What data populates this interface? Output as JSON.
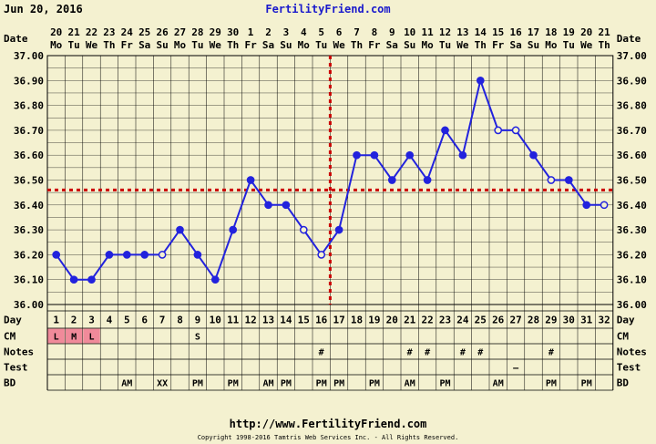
{
  "header": {
    "date": "Jun 20, 2016",
    "site": "FertilityFriend.com"
  },
  "footer": {
    "url": "http://www.FertilityFriend.com",
    "copyright": "Copyright 1998-2016 Tamtris Web Services Inc. - All Rights Reserved."
  },
  "chart_data": {
    "type": "line",
    "row_labels": {
      "date": "Date",
      "day": "Day",
      "cm": "CM",
      "notes": "Notes",
      "test": "Test",
      "bd": "BD"
    },
    "dates": [
      "20",
      "21",
      "22",
      "23",
      "24",
      "25",
      "26",
      "27",
      "28",
      "29",
      "30",
      "1",
      "2",
      "3",
      "4",
      "5",
      "6",
      "7",
      "8",
      "9",
      "10",
      "11",
      "12",
      "13",
      "14",
      "15",
      "16",
      "17",
      "18",
      "19",
      "20",
      "21"
    ],
    "weekdays": [
      "Mo",
      "Tu",
      "We",
      "Th",
      "Fr",
      "Sa",
      "Su",
      "Mo",
      "Tu",
      "We",
      "Th",
      "Fr",
      "Sa",
      "Su",
      "Mo",
      "Tu",
      "We",
      "Th",
      "Fr",
      "Sa",
      "Su",
      "Mo",
      "Tu",
      "We",
      "Th",
      "Fr",
      "Sa",
      "Su",
      "Mo",
      "Tu",
      "We",
      "Th"
    ],
    "days": [
      "1",
      "2",
      "3",
      "4",
      "5",
      "6",
      "7",
      "8",
      "9",
      "10",
      "11",
      "12",
      "13",
      "14",
      "15",
      "16",
      "17",
      "18",
      "19",
      "20",
      "21",
      "22",
      "23",
      "24",
      "25",
      "26",
      "27",
      "28",
      "29",
      "30",
      "31",
      "32"
    ],
    "temperatures": [
      36.2,
      36.1,
      36.1,
      36.2,
      36.2,
      36.2,
      36.2,
      36.3,
      36.2,
      36.1,
      36.3,
      36.5,
      36.4,
      36.4,
      36.3,
      36.2,
      36.3,
      36.6,
      36.6,
      36.5,
      36.6,
      36.5,
      36.7,
      36.6,
      36.9,
      36.7,
      36.7,
      36.6,
      36.5,
      36.5,
      36.4,
      36.4
    ],
    "open_points": [
      7,
      15,
      16,
      26,
      27,
      29,
      32
    ],
    "y_ticks": [
      "37.00",
      "36.90",
      "36.80",
      "36.70",
      "36.60",
      "36.50",
      "36.40",
      "36.30",
      "36.20",
      "36.10",
      "36.00"
    ],
    "ylim": [
      36.0,
      37.0
    ],
    "coverline": 36.46,
    "ovulation_day": 17,
    "cm": [
      "L",
      "M",
      "L",
      "",
      "",
      "",
      "",
      "",
      "S",
      "",
      "",
      "",
      "",
      "",
      "",
      "",
      "",
      "",
      "",
      "",
      "",
      "",
      "",
      "",
      "",
      "",
      "",
      "",
      "",
      "",
      "",
      ""
    ],
    "cm_highlight": [
      1,
      2,
      3
    ],
    "notes": [
      "",
      "",
      "",
      "",
      "",
      "",
      "",
      "",
      "",
      "",
      "",
      "",
      "",
      "",
      "",
      "#",
      "",
      "",
      "",
      "",
      "#",
      "#",
      "",
      "#",
      "#",
      "",
      "",
      "",
      "#",
      "",
      "",
      ""
    ],
    "test": [
      "",
      "",
      "",
      "",
      "",
      "",
      "",
      "",
      "",
      "",
      "",
      "",
      "",
      "",
      "",
      "",
      "",
      "",
      "",
      "",
      "",
      "",
      "",
      "",
      "",
      "",
      "—",
      "",
      "",
      "",
      "",
      ""
    ],
    "bd": [
      "",
      "",
      "",
      "",
      "AM",
      "",
      "XX",
      "",
      "PM",
      "",
      "PM",
      "",
      "AM",
      "PM",
      "",
      "PM",
      "PM",
      "",
      "PM",
      "",
      "AM",
      "",
      "PM",
      "",
      "",
      "AM",
      "",
      "",
      "PM",
      "",
      "PM",
      ""
    ],
    "colors": {
      "background": "#f4f1d0",
      "grid": "#000000",
      "line": "#2222dd",
      "coverline": "#cc0000",
      "cm_highlight": "#f08a9a",
      "site_link": "#1a1acc"
    }
  }
}
